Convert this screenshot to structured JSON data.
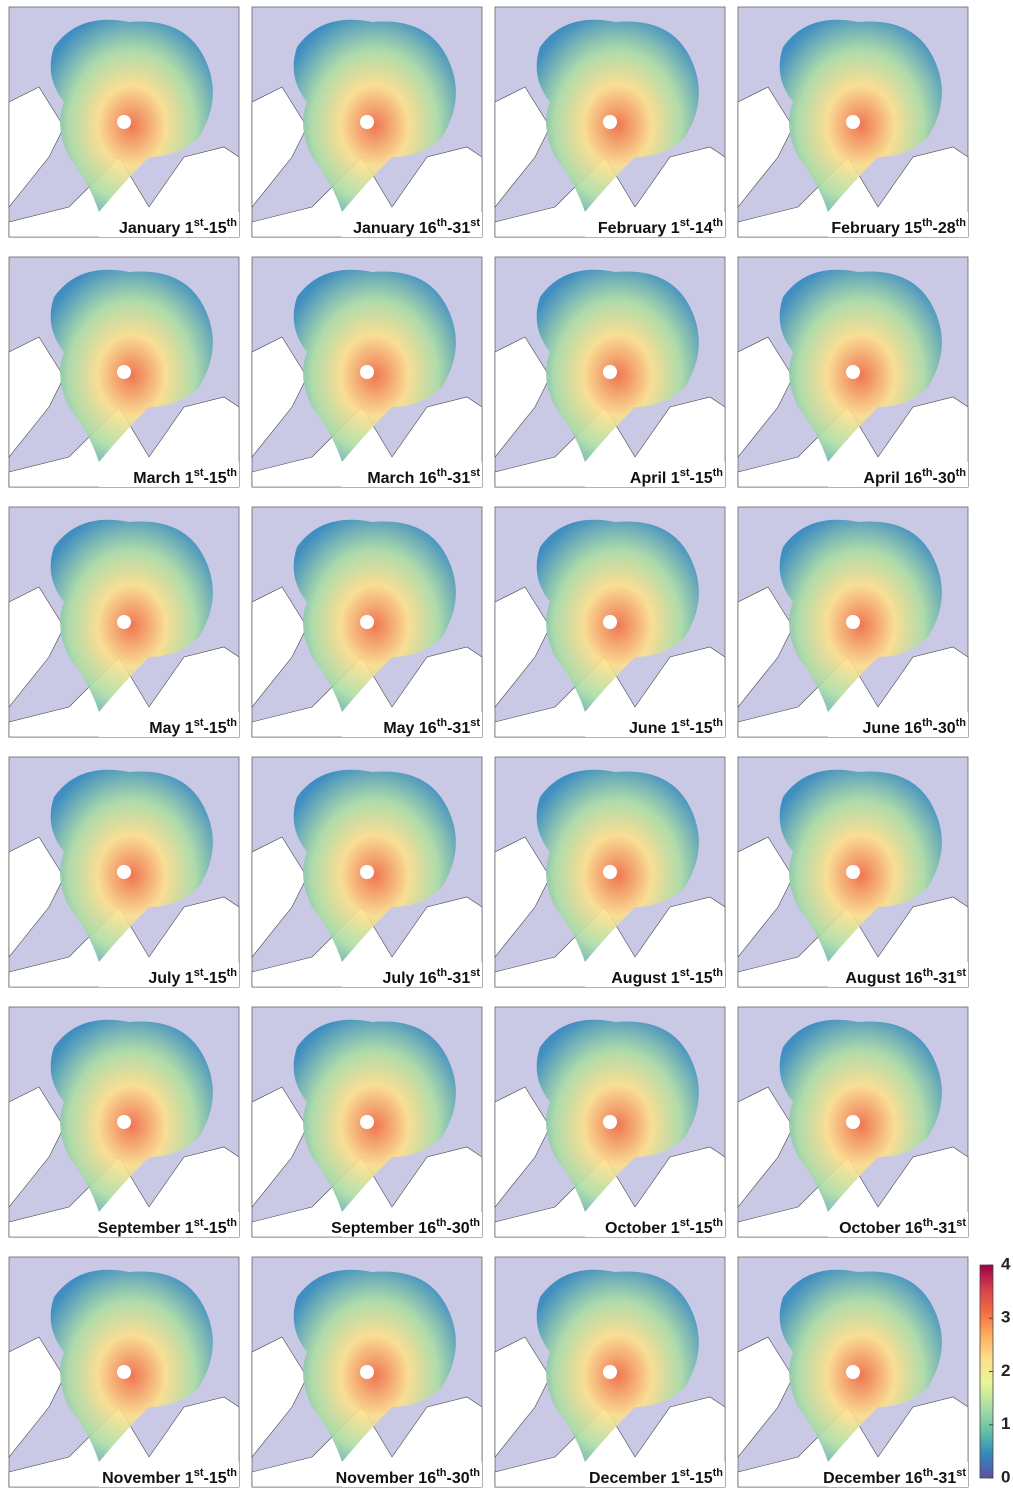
{
  "panels": [
    {
      "label": [
        "January 1",
        "st",
        "-15",
        "th"
      ]
    },
    {
      "label": [
        "January 16",
        "th",
        "-31",
        "st"
      ]
    },
    {
      "label": [
        "February 1",
        "st",
        "-14",
        "th"
      ]
    },
    {
      "label": [
        "February 15",
        "th",
        "-28",
        "th"
      ]
    },
    {
      "label": [
        "March 1",
        "st",
        "-15",
        "th"
      ]
    },
    {
      "label": [
        "March 16",
        "th",
        "-31",
        "st"
      ]
    },
    {
      "label": [
        "April 1",
        "st",
        "-15",
        "th"
      ]
    },
    {
      "label": [
        "April 16",
        "th",
        "-30",
        "th"
      ]
    },
    {
      "label": [
        "May 1",
        "st",
        "-15",
        "th"
      ]
    },
    {
      "label": [
        "May 16",
        "th",
        "-31",
        "st"
      ]
    },
    {
      "label": [
        "June 1",
        "st",
        "-15",
        "th"
      ]
    },
    {
      "label": [
        "June 16",
        "th",
        "-30",
        "th"
      ]
    },
    {
      "label": [
        "July 1",
        "st",
        "-15",
        "th"
      ]
    },
    {
      "label": [
        "July 16",
        "th",
        "-31",
        "st"
      ]
    },
    {
      "label": [
        "August 1",
        "st",
        "-15",
        "th"
      ]
    },
    {
      "label": [
        "August 16",
        "th",
        "-31",
        "st"
      ]
    },
    {
      "label": [
        "September 1",
        "st",
        "-15",
        "th"
      ]
    },
    {
      "label": [
        "September 16",
        "th",
        "-30",
        "th"
      ]
    },
    {
      "label": [
        "October 1",
        "st",
        "-15",
        "th"
      ]
    },
    {
      "label": [
        "October 16",
        "th",
        "-31",
        "st"
      ]
    },
    {
      "label": [
        "November 1",
        "st",
        "-15",
        "th"
      ]
    },
    {
      "label": [
        "November 16",
        "th",
        "-30",
        "th"
      ]
    },
    {
      "label": [
        "December 1",
        "st",
        "-15",
        "th"
      ]
    },
    {
      "label": [
        "December 16",
        "th",
        "-31",
        "st"
      ]
    }
  ],
  "colorbar": {
    "lim": [
      0,
      4
    ],
    "ticks": [
      0,
      1,
      2,
      3,
      4
    ],
    "colors": [
      "#5e4fa2",
      "#3288bd",
      "#66c2a5",
      "#abdda4",
      "#e6f598",
      "#fee08b",
      "#fdae61",
      "#f46d43",
      "#d53e4f",
      "#9e0142"
    ]
  }
}
